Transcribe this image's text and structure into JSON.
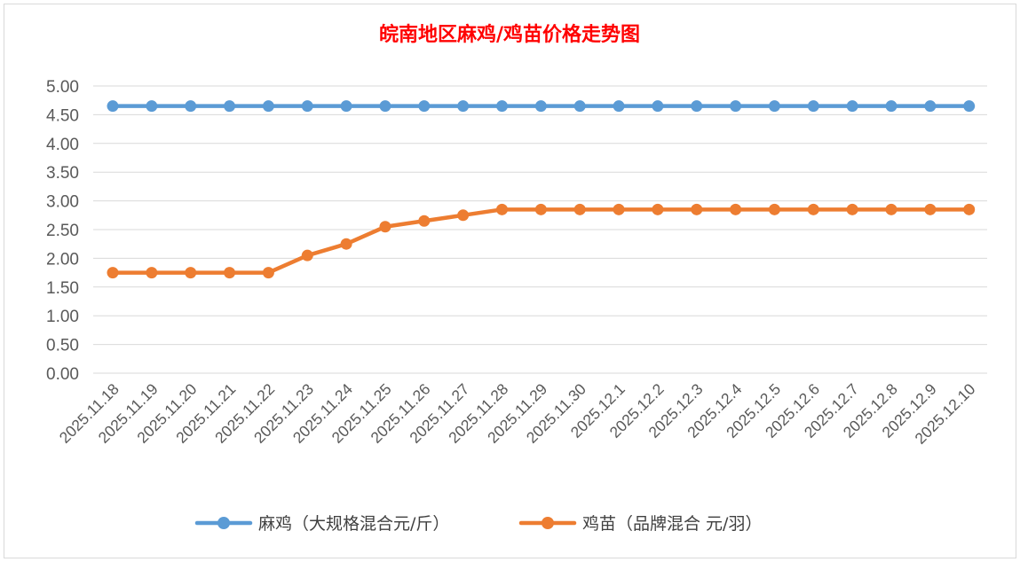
{
  "chart_data": {
    "type": "line",
    "title": "皖南地区麻鸡/鸡苗价格走势图",
    "title_color": "#ff0000",
    "categories": [
      "2025.11.18",
      "2025.11.19",
      "2025.11.20",
      "2025.11.21",
      "2025.11.22",
      "2025.11.23",
      "2025.11.24",
      "2025.11.25",
      "2025.11.26",
      "2025.11.27",
      "2025.11.28",
      "2025.11.29",
      "2025.11.30",
      "2025.12.1",
      "2025.12.2",
      "2025.12.3",
      "2025.12.4",
      "2025.12.5",
      "2025.12.6",
      "2025.12.7",
      "2025.12.8",
      "2025.12.9",
      "2025.12.10"
    ],
    "series": [
      {
        "name": "麻鸡（大规格混合元/斤）",
        "color": "#5b9bd5",
        "values": [
          4.65,
          4.65,
          4.65,
          4.65,
          4.65,
          4.65,
          4.65,
          4.65,
          4.65,
          4.65,
          4.65,
          4.65,
          4.65,
          4.65,
          4.65,
          4.65,
          4.65,
          4.65,
          4.65,
          4.65,
          4.65,
          4.65,
          4.65
        ]
      },
      {
        "name": "鸡苗（品牌混合 元/羽）",
        "color": "#ed7d31",
        "values": [
          1.75,
          1.75,
          1.75,
          1.75,
          1.75,
          2.05,
          2.25,
          2.55,
          2.65,
          2.75,
          2.85,
          2.85,
          2.85,
          2.85,
          2.85,
          2.85,
          2.85,
          2.85,
          2.85,
          2.85,
          2.85,
          2.85,
          2.85
        ]
      }
    ],
    "y_ticks": [
      "0.00",
      "0.50",
      "1.00",
      "1.50",
      "2.00",
      "2.50",
      "3.00",
      "3.50",
      "4.00",
      "4.50",
      "5.00"
    ],
    "ylim": [
      0,
      5
    ],
    "xlabel": "",
    "ylabel": "",
    "grid": true,
    "gridline_color": "#d9d9d9",
    "legend_position": "bottom"
  }
}
